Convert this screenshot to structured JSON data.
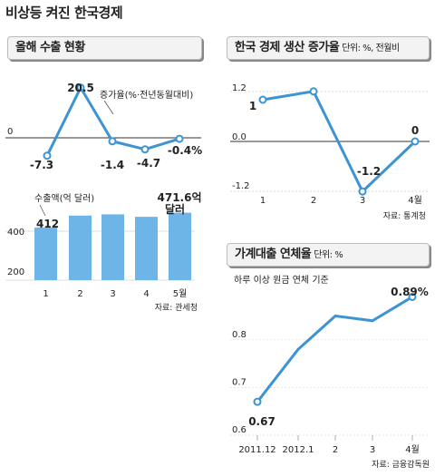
{
  "title": "비상등 켜진 한국경제",
  "exports": {
    "title": "올해 수출 현황",
    "source": "자료: 관세청",
    "growth_label": "증가율(%·전년동월대비)",
    "amount_label": "수출액(억 달러)",
    "last_bar_label": [
      "471.6억",
      "달러"
    ]
  },
  "production": {
    "title": "한국 경제 생산 증가율",
    "unit": "단위: %, 전월비",
    "source": "자료: 통계청"
  },
  "delinquency": {
    "title": "가계대출 연체율",
    "unit": "단위: %",
    "note": "하루 이상 원금 연체 기준",
    "source": "자료: 금융감독원"
  },
  "chart_data": [
    {
      "id": "exports-growth",
      "type": "line",
      "categories": [
        "1",
        "2",
        "3",
        "4",
        "5월"
      ],
      "values": [
        -7.3,
        20.5,
        -1.4,
        -4.7,
        -0.4
      ],
      "labels": [
        "-7.3",
        "20.5",
        "-1.4",
        "-4.7",
        "-0.4%"
      ],
      "yticks": [
        "0"
      ],
      "color": "#3c94d2"
    },
    {
      "id": "exports-amount",
      "type": "bar",
      "categories": [
        "1",
        "2",
        "3",
        "4",
        "5월"
      ],
      "values": [
        412,
        460,
        465,
        455,
        471.6
      ],
      "labels": [
        "412",
        "",
        "",
        "",
        ""
      ],
      "yticks": [
        "400",
        "200"
      ],
      "color": "#6db5e7"
    },
    {
      "id": "production-growth",
      "type": "line",
      "categories": [
        "1",
        "2",
        "3",
        "4월"
      ],
      "values": [
        1.0,
        1.2,
        -1.2,
        0.0
      ],
      "labels": [
        "1",
        "",
        "-1.2",
        "0"
      ],
      "yticks": [
        "1.2",
        "0.0",
        "-1.2"
      ],
      "color": "#3c94d2"
    },
    {
      "id": "delinquency-rate",
      "type": "line",
      "categories": [
        "2011.12",
        "2012.1",
        "2",
        "3",
        "4월"
      ],
      "values": [
        0.67,
        0.78,
        0.85,
        0.84,
        0.89
      ],
      "labels": [
        "0.67",
        "",
        "",
        "",
        "0.89%"
      ],
      "yticks": [
        "0.8",
        "0.7",
        "0.6"
      ],
      "color": "#3c94d2"
    }
  ]
}
